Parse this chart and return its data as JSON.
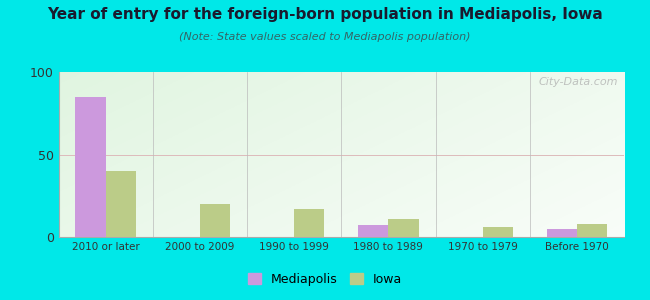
{
  "title": "Year of entry for the foreign-born population in Mediapolis, Iowa",
  "subtitle": "(Note: State values scaled to Mediapolis population)",
  "categories": [
    "2010 or later",
    "2000 to 2009",
    "1990 to 1999",
    "1980 to 1989",
    "1970 to 1979",
    "Before 1970"
  ],
  "mediapolis": [
    85,
    0,
    0,
    7,
    0,
    5
  ],
  "iowa": [
    40,
    20,
    17,
    11,
    6,
    8
  ],
  "mediapolis_color": "#cc99dd",
  "iowa_color": "#bbcc88",
  "ylim": [
    0,
    100
  ],
  "yticks": [
    0,
    50,
    100
  ],
  "background_color": "#00e8e8",
  "bar_width": 0.32,
  "legend_labels": [
    "Mediapolis",
    "Iowa"
  ],
  "watermark": "City-Data.com"
}
